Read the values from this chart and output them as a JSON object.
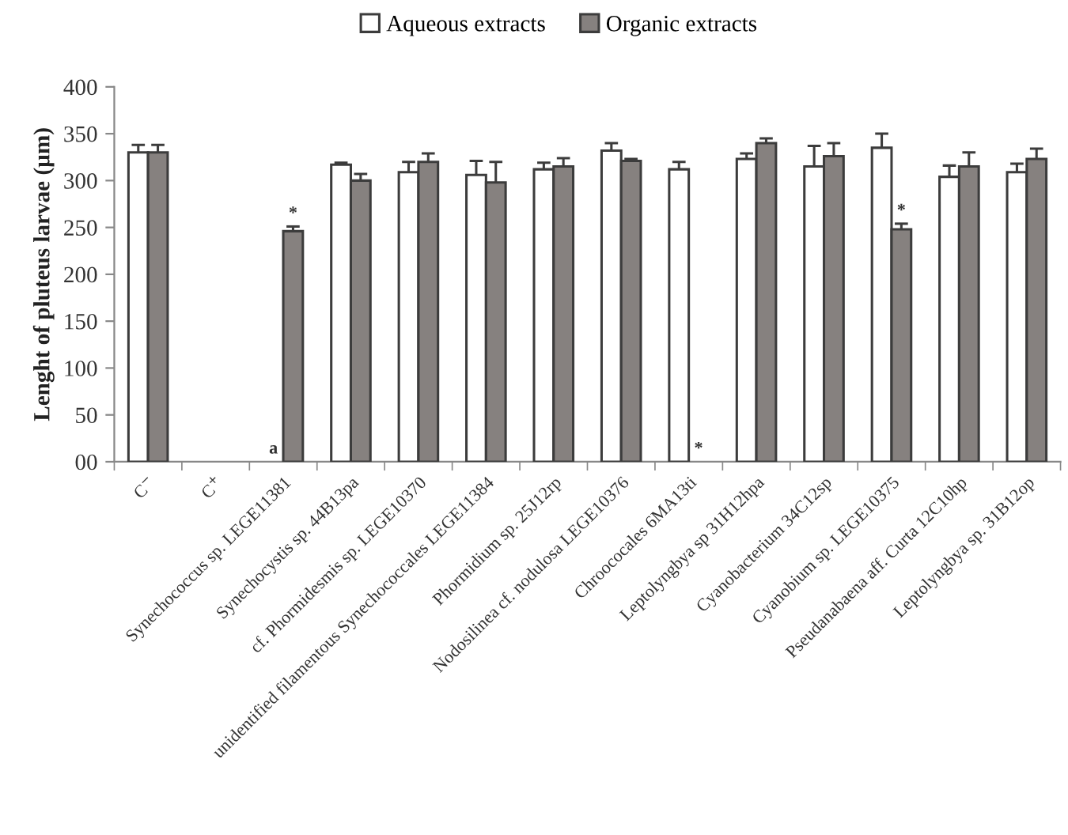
{
  "chart_data": {
    "type": "bar",
    "ylabel": "Lenght of pluteus larvae (µm)",
    "categories": [
      "C$^{−}$",
      "C$^{+}$",
      "Synechococcus sp. LEGE11381",
      "Synechocystis sp. 44B13pa",
      "cf. Phormidesmis sp. LEGE10370",
      "unidentified filamentous Synechococcales LEGE11384",
      "Phormidium sp. 25J12rp",
      "Nodosilinea cf. nodulosa LEGE10376",
      "Chroococales 6MA13ti",
      "Leptolyngbya sp 31H12hpa",
      "Cyanobacterium 34C12sp",
      "Cyanobium sp. LEGE10375",
      "Pseudanabaena aff. Curta 12C10hp",
      "Leptolyngbya sp. 31B12op"
    ],
    "series": [
      {
        "name": "Aqueous extracts",
        "color": "#ffffff",
        "values": [
          330,
          null,
          null,
          317,
          309,
          306,
          312,
          332,
          312,
          323,
          315,
          335,
          304,
          309
        ],
        "errors": [
          8,
          null,
          null,
          2,
          11,
          15,
          7,
          8,
          8,
          6,
          22,
          15,
          12,
          9
        ],
        "value_labels": [
          null,
          null,
          "a",
          null,
          null,
          null,
          null,
          null,
          null,
          null,
          null,
          null,
          null,
          null
        ]
      },
      {
        "name": "Organic extracts",
        "color": "#86817f",
        "values": [
          330,
          null,
          246,
          300,
          320,
          298,
          315,
          321,
          null,
          340,
          326,
          248,
          315,
          323
        ],
        "errors": [
          8,
          null,
          5,
          7,
          9,
          22,
          9,
          2,
          null,
          5,
          14,
          6,
          15,
          11
        ],
        "value_labels": [
          null,
          null,
          "*",
          null,
          null,
          null,
          null,
          null,
          "*",
          null,
          null,
          "*",
          null,
          null
        ]
      }
    ],
    "ylim": [
      0,
      400
    ],
    "yticks": [
      {
        "value": 0,
        "label": "00"
      },
      50,
      100,
      150,
      200,
      250,
      300,
      350,
      400
    ],
    "legend": "top"
  }
}
